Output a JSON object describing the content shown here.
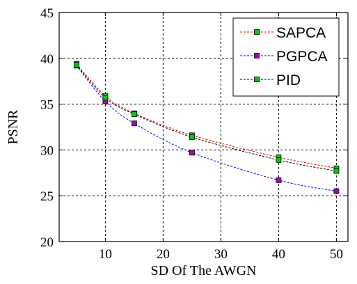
{
  "chart_data": {
    "type": "line",
    "xlabel": "SD Of The AWGN",
    "ylabel": "PSNR",
    "xlim": [
      2,
      52
    ],
    "ylim": [
      20,
      45
    ],
    "xticks": [
      10,
      20,
      30,
      40,
      50
    ],
    "yticks": [
      20,
      25,
      30,
      35,
      40,
      45
    ],
    "grid": true,
    "legend_position": "top-right",
    "x": [
      5,
      10,
      15,
      25,
      40,
      50
    ],
    "series": [
      {
        "name": "SAPCA",
        "line_color": "#ff0000",
        "marker_color": "#00cc00",
        "values": [
          39.4,
          35.9,
          34.0,
          31.6,
          29.2,
          28.0
        ]
      },
      {
        "name": "PGPCA",
        "line_color": "#0000ff",
        "marker_color": "#b000b0",
        "values": [
          39.2,
          35.3,
          32.9,
          29.7,
          26.7,
          25.5
        ]
      },
      {
        "name": "PID",
        "line_color": "#000000",
        "marker_color": "#00cc00",
        "values": [
          39.3,
          35.7,
          33.9,
          31.4,
          28.9,
          27.7
        ]
      }
    ]
  }
}
